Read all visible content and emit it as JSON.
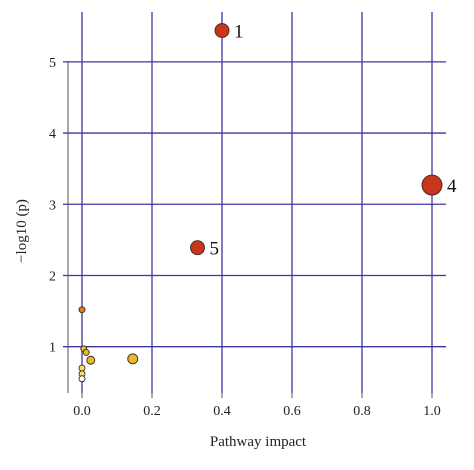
{
  "chart_data": {
    "type": "scatter",
    "xlabel": "Pathway impact",
    "ylabel": "−log10 (p)",
    "xlim": [
      -0.04,
      1.04
    ],
    "ylim": [
      0.35,
      5.7
    ],
    "x_ticks": [
      {
        "value": 0.0,
        "label": "0.0"
      },
      {
        "value": 0.2,
        "label": "0.2"
      },
      {
        "value": 0.4,
        "label": "0.4"
      },
      {
        "value": 0.6,
        "label": "0.6"
      },
      {
        "value": 0.8,
        "label": "0.8"
      },
      {
        "value": 1.0,
        "label": "1.0"
      }
    ],
    "y_ticks": [
      {
        "value": 1,
        "label": "1"
      },
      {
        "value": 2,
        "label": "2"
      },
      {
        "value": 3,
        "label": "3"
      },
      {
        "value": 4,
        "label": "4"
      },
      {
        "value": 5,
        "label": "5"
      }
    ],
    "grid": true,
    "colors": {
      "grid": "#3b35a0",
      "axis": "#555555",
      "high_significance": "#c9341c",
      "mid_significance": "#e07a1e",
      "low_significance": "#e8b72e",
      "lowest_significance": "#f2e070",
      "white": "#ffffff"
    },
    "points": [
      {
        "x": 0.4,
        "y": 5.44,
        "label": "1",
        "size": 7,
        "color": "#c9341c"
      },
      {
        "x": 1.0,
        "y": 3.27,
        "label": "4",
        "size": 10,
        "color": "#c9341c"
      },
      {
        "x": 0.33,
        "y": 2.39,
        "label": "5",
        "size": 7,
        "color": "#c9341c"
      },
      {
        "x": 0.0,
        "y": 1.52,
        "label": "",
        "size": 3,
        "color": "#e07a1e"
      },
      {
        "x": 0.005,
        "y": 0.97,
        "label": "",
        "size": 3,
        "color": "#e8b72e"
      },
      {
        "x": 0.012,
        "y": 0.92,
        "label": "",
        "size": 3,
        "color": "#e8b72e"
      },
      {
        "x": 0.025,
        "y": 0.81,
        "label": "",
        "size": 4,
        "color": "#e8b72e"
      },
      {
        "x": 0.145,
        "y": 0.83,
        "label": "",
        "size": 5,
        "color": "#e8b72e"
      },
      {
        "x": 0.0,
        "y": 0.7,
        "label": "",
        "size": 3,
        "color": "#f2e070"
      },
      {
        "x": 0.0,
        "y": 0.62,
        "label": "",
        "size": 3,
        "color": "#f2e070"
      },
      {
        "x": 0.0,
        "y": 0.55,
        "label": "",
        "size": 3,
        "color": "#ffffff"
      }
    ]
  }
}
